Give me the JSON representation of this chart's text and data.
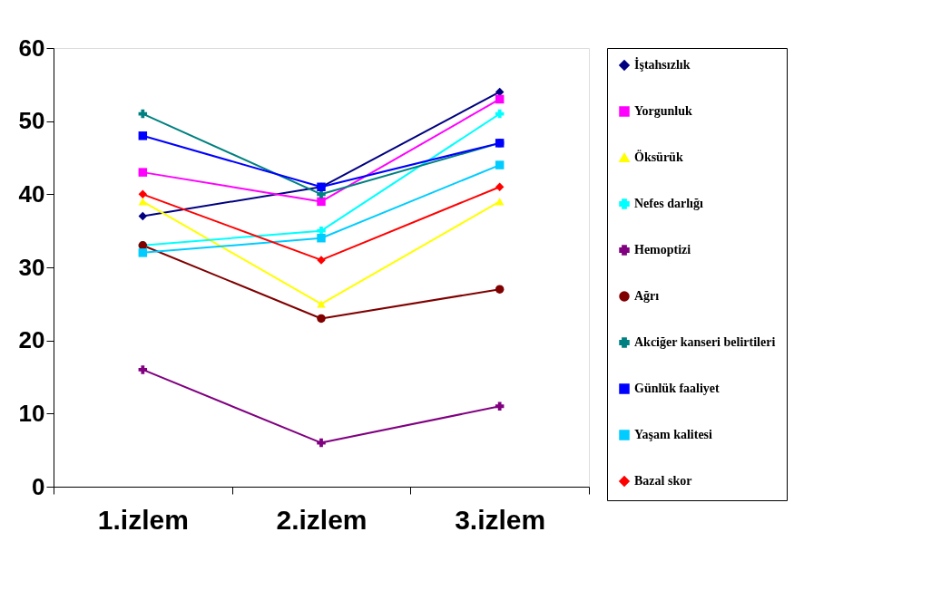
{
  "chart_data": {
    "type": "line",
    "categories": [
      "1.izlem",
      "2.izlem",
      "3.izlem"
    ],
    "ylim": [
      0,
      60
    ],
    "yticks": [
      0,
      10,
      20,
      30,
      40,
      50,
      60
    ],
    "grid": false,
    "legend": "right",
    "series": [
      {
        "name": "İştahsızlık",
        "color": "#000080",
        "marker": "diamond",
        "values": [
          37,
          41,
          54
        ]
      },
      {
        "name": "Yorgunluk",
        "color": "#ff00ff",
        "marker": "square",
        "values": [
          43,
          39,
          53
        ]
      },
      {
        "name": "Öksürük",
        "color": "#ffff00",
        "marker": "triangle",
        "values": [
          39,
          25,
          39
        ]
      },
      {
        "name": "Nefes darlığı",
        "color": "#00ffff",
        "marker": "cross",
        "values": [
          33,
          35,
          51
        ]
      },
      {
        "name": "Hemoptizi",
        "color": "#800080",
        "marker": "cross",
        "values": [
          16,
          6,
          11
        ]
      },
      {
        "name": "Ağrı",
        "color": "#800000",
        "marker": "circle",
        "values": [
          33,
          23,
          27
        ]
      },
      {
        "name": "Akciğer kanseri belirtileri",
        "color": "#008080",
        "marker": "cross",
        "values": [
          51,
          40,
          47
        ]
      },
      {
        "name": "Günlük faaliyet",
        "color": "#0000ff",
        "marker": "square",
        "values": [
          48,
          41,
          47
        ]
      },
      {
        "name": "Yaşam kalitesi",
        "color": "#00ccff",
        "marker": "square",
        "values": [
          32,
          34,
          44
        ]
      },
      {
        "name": "Bazal skor",
        "color": "#ff0000",
        "marker": "diamond",
        "values": [
          40,
          31,
          41
        ]
      }
    ]
  }
}
